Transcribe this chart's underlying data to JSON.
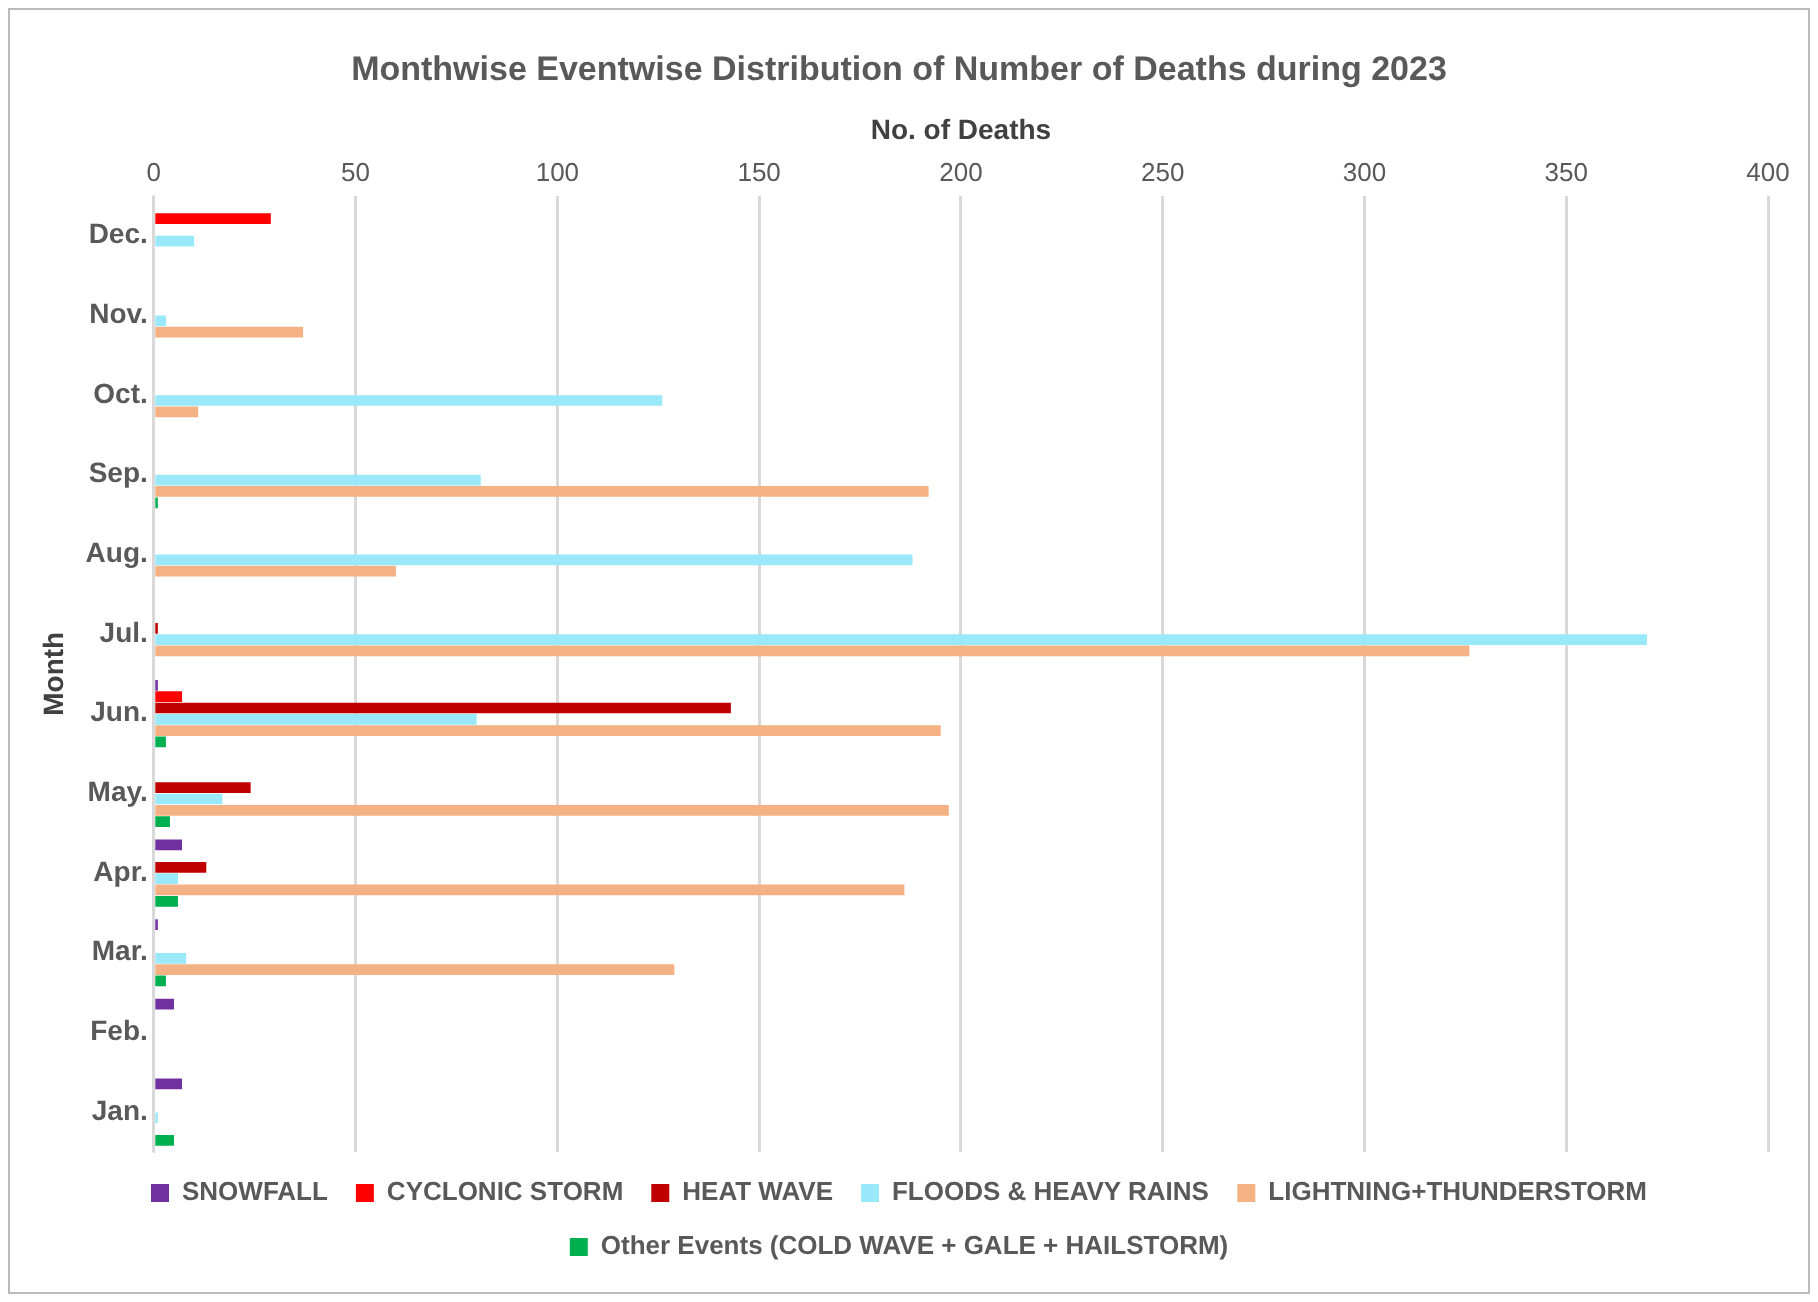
{
  "chart_data": {
    "type": "bar",
    "orientation": "horizontal",
    "title": "Monthwise Eventwise Distribution of Number of Deaths during 2023",
    "xlabel": "No. of Deaths",
    "ylabel": "Month",
    "categories": [
      "Dec.",
      "Nov.",
      "Oct.",
      "Sep.",
      "Aug.",
      "Jul.",
      "Jun.",
      "May.",
      "Apr.",
      "Mar.",
      "Feb.",
      "Jan."
    ],
    "xlim": [
      0,
      400
    ],
    "xticks": [
      0,
      50,
      100,
      150,
      200,
      250,
      300,
      350,
      400
    ],
    "grid": "x",
    "legend": "bottom",
    "series": [
      {
        "name": "SNOWFALL",
        "color": "#7030a0",
        "values": [
          null,
          null,
          null,
          null,
          null,
          null,
          1,
          null,
          7,
          1,
          5,
          7
        ]
      },
      {
        "name": "CYCLONIC STORM",
        "color": "#ff0000",
        "values": [
          29,
          null,
          null,
          null,
          null,
          null,
          7,
          null,
          null,
          null,
          null,
          null
        ]
      },
      {
        "name": "HEAT WAVE",
        "color": "#c00000",
        "values": [
          null,
          null,
          null,
          null,
          null,
          1,
          143,
          24,
          13,
          null,
          null,
          null
        ]
      },
      {
        "name": "FLOODS & HEAVY RAINS",
        "color": "#99e9fb",
        "values": [
          10,
          3,
          126,
          81,
          188,
          370,
          80,
          17,
          6,
          8,
          null,
          1
        ]
      },
      {
        "name": "LIGHTNING+THUNDERSTORM",
        "color": "#f4b183",
        "values": [
          null,
          37,
          11,
          192,
          60,
          326,
          195,
          197,
          186,
          129,
          null,
          null
        ]
      },
      {
        "name": "Other Events (COLD WAVE + GALE + HAILSTORM)",
        "color": "#00b050",
        "values": [
          null,
          null,
          null,
          1,
          null,
          null,
          3,
          4,
          6,
          3,
          null,
          5
        ]
      }
    ]
  }
}
